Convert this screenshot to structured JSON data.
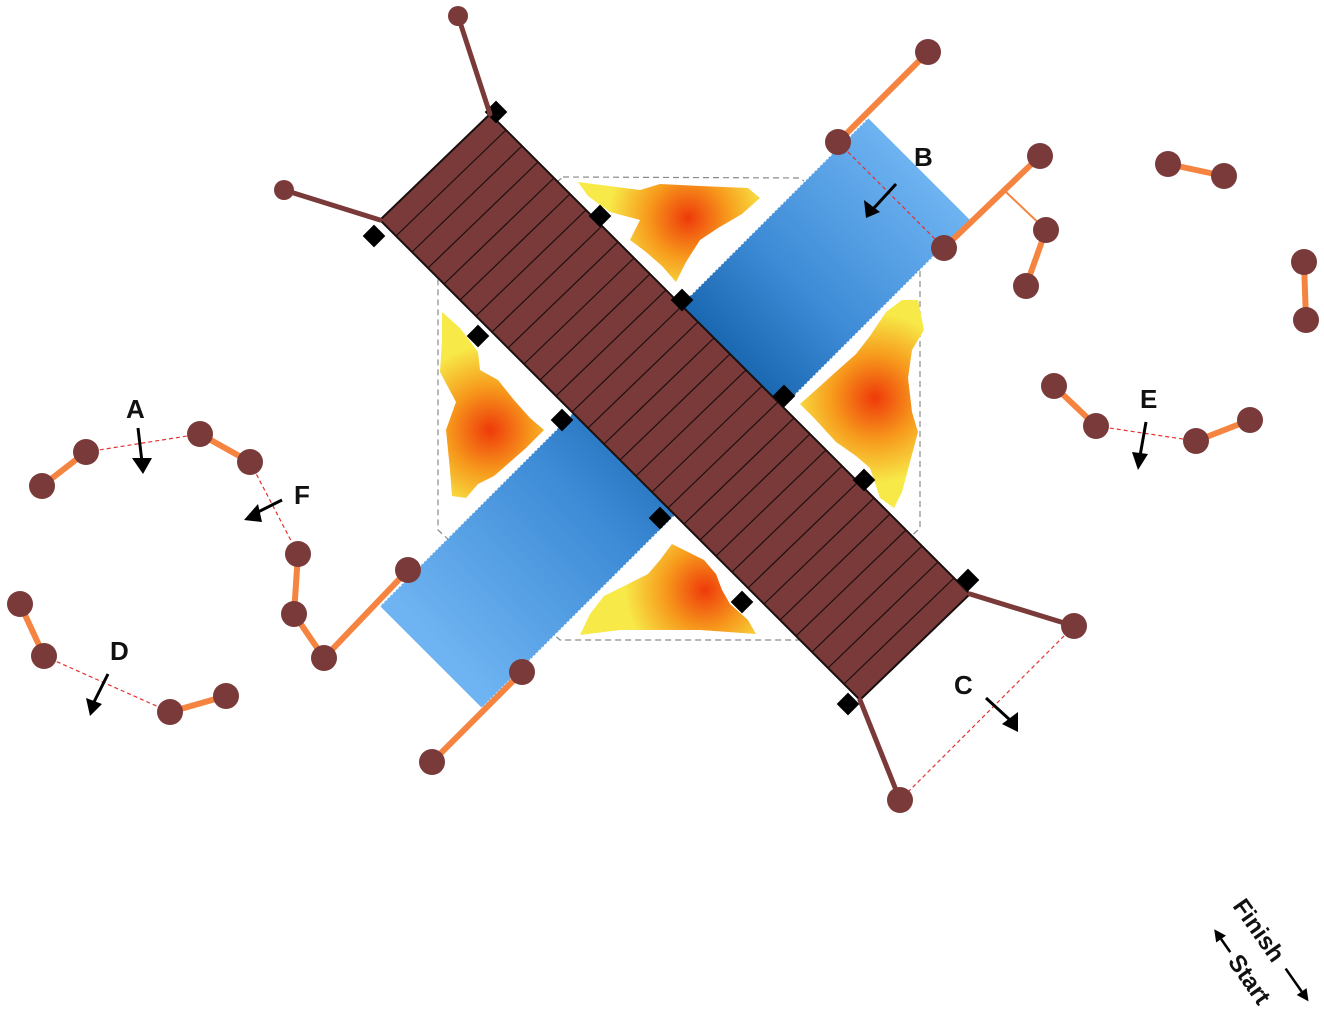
{
  "labels": {
    "a": "A",
    "b": "B",
    "c": "C",
    "d": "D",
    "e": "E",
    "f": "F"
  },
  "legend": {
    "finish": "Finish",
    "start": "Start"
  },
  "colors": {
    "bar_fill": "#7a3a3a",
    "bar_stroke": "#1a0f0f",
    "beam_light": "#6fb4f2",
    "beam_dark": "#0c5aa3",
    "node_fill": "#7a3a3a",
    "orange_link": "#f58441",
    "brown_link": "#7a3a3a",
    "dashed_red": "#e53030",
    "marker": "#000000"
  }
}
